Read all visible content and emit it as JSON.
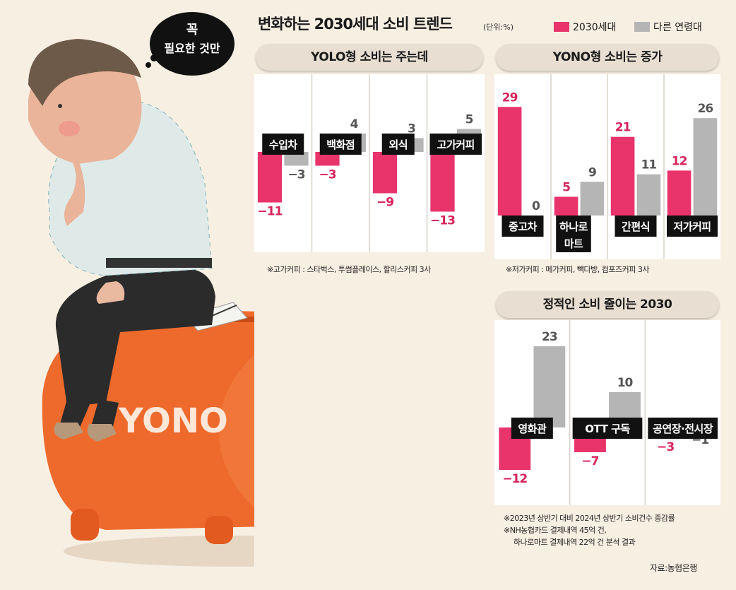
{
  "title": "변화하는 2030세대 소비 트렌드",
  "unit": "(단위:%)",
  "legend": [
    {
      "label": "2030세대",
      "color": "#e8336b"
    },
    {
      "label": "다른 연령대",
      "color": "#b5b5b5"
    }
  ],
  "speech_bubble": {
    "line1": "꼭",
    "line2": "필요한 것만"
  },
  "illustration_text": "YONO",
  "chart_data": [
    {
      "type": "bar",
      "title": "YOLO형 소비는 주는데",
      "categories": [
        "수입차",
        "백화점",
        "외식",
        "고가커피"
      ],
      "series": [
        {
          "name": "2030세대",
          "values": [
            -11,
            -3,
            -9,
            -13
          ]
        },
        {
          "name": "다른 연령대",
          "values": [
            -3,
            4,
            3,
            5
          ]
        }
      ],
      "note": "※고가커피 : 스타벅스, 투썸플레이스, 할리스커피 3사"
    },
    {
      "type": "bar",
      "title": "YONO형 소비는 증가",
      "categories": [
        "중고차",
        "하나로\n마트",
        "간편식",
        "저가커피"
      ],
      "series": [
        {
          "name": "2030세대",
          "values": [
            29,
            5,
            21,
            12
          ]
        },
        {
          "name": "다른 연령대",
          "values": [
            0,
            9,
            11,
            26
          ]
        }
      ],
      "note": "※저가커피 : 메가커피, 빽다방, 컴포즈커피 3사"
    },
    {
      "type": "bar",
      "title": "정적인 소비 줄이는 2030",
      "categories": [
        "영화관",
        "OTT 구독",
        "공연장·전시장"
      ],
      "series": [
        {
          "name": "2030세대",
          "values": [
            -12,
            -7,
            -3
          ]
        },
        {
          "name": "다른 연령대",
          "values": [
            23,
            10,
            -1
          ]
        }
      ]
    }
  ],
  "footnotes": [
    "※2023년 상반기 대비 2024년 상반기 소비건수 증감률",
    "※NH농협카드 결제내역 45억 건,",
    "하나로마트 결제내역 22억 건 분석 결과"
  ],
  "source": "자료:농협은행"
}
